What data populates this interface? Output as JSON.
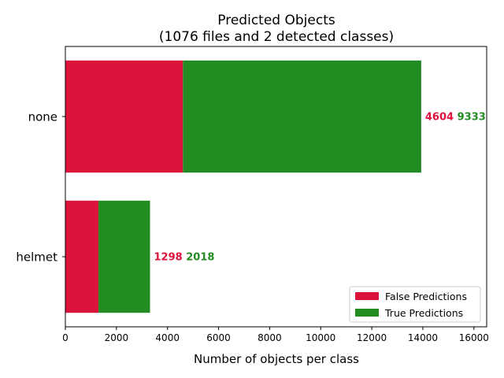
{
  "chart_data": {
    "type": "bar",
    "orientation": "horizontal",
    "stacked": true,
    "title": "Predicted Objects",
    "subtitle": "(1076 files and 2 detected classes)",
    "xlabel": "Number of objects per class",
    "ylabel": "",
    "categories": [
      "none",
      "helmet"
    ],
    "series": [
      {
        "name": "False Predictions",
        "color": "#dc143c",
        "values": [
          4604,
          1298
        ]
      },
      {
        "name": "True Predictions",
        "color": "#228b22",
        "values": [
          9333,
          2018
        ]
      }
    ],
    "data_labels": [
      {
        "false": "4604",
        "true": "9333"
      },
      {
        "false": "1298",
        "true": "2018"
      }
    ],
    "xlim": [
      0,
      16500
    ],
    "xticks": [
      0,
      2000,
      4000,
      6000,
      8000,
      10000,
      12000,
      14000,
      16000
    ],
    "legend_position": "lower-right",
    "grid": false
  }
}
